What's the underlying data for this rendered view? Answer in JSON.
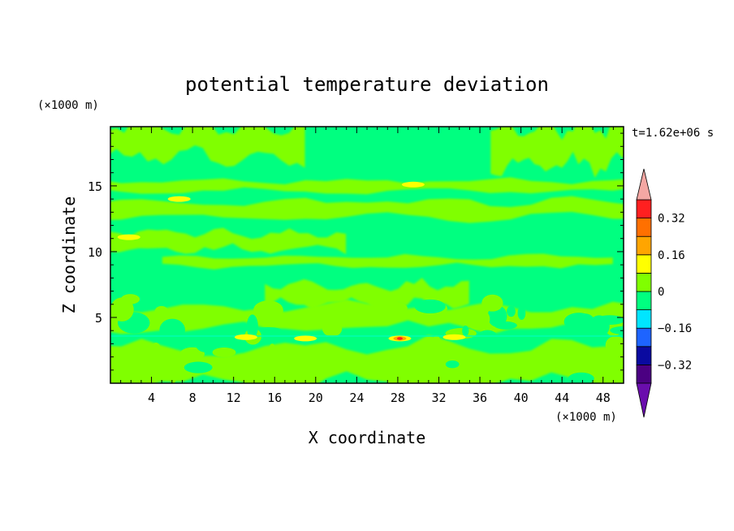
{
  "chart_data": {
    "type": "heatmap",
    "title": "potential temperature deviation",
    "xlabel": "X coordinate",
    "ylabel": "Z coordinate",
    "x_unit": "(×1000 m)",
    "y_unit": "(×1000 m)",
    "time_label": "t=1.62e+06 s",
    "xlim": [
      0,
      50
    ],
    "ylim": [
      0,
      19.5
    ],
    "x_ticks": [
      4,
      8,
      12,
      16,
      20,
      24,
      28,
      32,
      36,
      40,
      44,
      48
    ],
    "y_ticks": [
      5,
      10,
      15
    ],
    "colorbar": {
      "levels": [
        -0.4,
        -0.32,
        -0.24,
        -0.16,
        -0.08,
        0,
        0.08,
        0.16,
        0.24,
        0.32,
        0.4
      ],
      "colors": [
        "#4b0082",
        "#0a0aa0",
        "#1e64ff",
        "#00e5ff",
        "#00ff80",
        "#80ff00",
        "#ffff00",
        "#ffa500",
        "#ff7000",
        "#ff2020"
      ],
      "under_color": "#6a0dad",
      "over_color": "#f4a7a3",
      "labels": [
        {
          "value": 0.32,
          "text": "0.32"
        },
        {
          "value": 0.16,
          "text": "0.16"
        },
        {
          "value": 0,
          "text": "0"
        },
        {
          "value": -0.16,
          "text": "−0.16"
        },
        {
          "value": -0.32,
          "text": "−0.32"
        }
      ]
    },
    "field": {
      "background_color": "#00ff80",
      "positive_color": "#80ff00",
      "bands": [
        {
          "z": [
            14.6,
            15.4
          ],
          "x": [
            0,
            50
          ]
        },
        {
          "z": [
            12.6,
            13.8
          ],
          "x": [
            0,
            50
          ]
        },
        {
          "z": [
            10.2,
            11.4
          ],
          "x": [
            0,
            22
          ]
        },
        {
          "z": [
            8.9,
            9.6
          ],
          "x": [
            6,
            48
          ]
        },
        {
          "z": [
            17.2,
            19.5
          ],
          "x": [
            0,
            18
          ]
        },
        {
          "z": [
            16.6,
            19.5
          ],
          "x": [
            38,
            50
          ]
        },
        {
          "z": [
            6.0,
            7.5
          ],
          "x": [
            16,
            34
          ]
        },
        {
          "z": [
            4.2,
            5.8
          ],
          "x": [
            0,
            50
          ]
        },
        {
          "z": [
            0,
            2.8
          ],
          "x": [
            0,
            50
          ]
        }
      ],
      "hot_spots": [
        {
          "x": 29.5,
          "z": 15.1,
          "value": 0.1
        },
        {
          "x": 6.7,
          "z": 14.0,
          "value": 0.1
        },
        {
          "x": 28.2,
          "z": 3.4,
          "value": 0.3
        },
        {
          "x": 13.2,
          "z": 3.5,
          "value": 0.1
        },
        {
          "x": 33.5,
          "z": 3.5,
          "value": 0.1
        },
        {
          "x": 19.0,
          "z": 3.4,
          "value": 0.1
        },
        {
          "x": 1.8,
          "z": 11.1,
          "value": 0.1
        }
      ]
    }
  }
}
